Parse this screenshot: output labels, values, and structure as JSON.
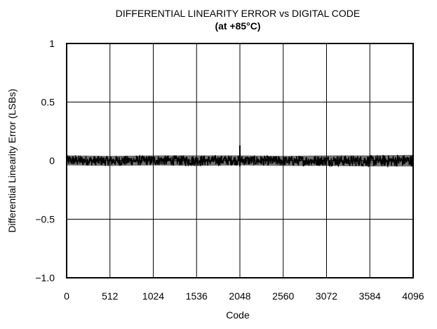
{
  "chart_data": {
    "type": "line",
    "title": "DIFFERENTIAL LINEARITY ERROR vs DIGITAL CODE",
    "subtitle": "(at +85°C)",
    "xlabel": "Code",
    "ylabel": "Differential Linearity Error (LSBs)",
    "xlim": [
      0,
      4096
    ],
    "ylim": [
      -1.0,
      1.0
    ],
    "x_ticks": [
      0,
      512,
      1024,
      1536,
      2048,
      2560,
      3072,
      3584,
      4096
    ],
    "x_tick_labels": [
      "0",
      "512",
      "1024",
      "1536",
      "2048",
      "2560",
      "3072",
      "3584",
      "4096"
    ],
    "y_ticks": [
      -1.0,
      -0.5,
      0,
      0.5,
      1
    ],
    "y_tick_labels": [
      "−1.0",
      "−0.5",
      "0",
      "0.5",
      "1"
    ],
    "grid": true,
    "series": [
      {
        "color": "#000000",
        "band": {
          "x": [
            0,
            512,
            1024,
            1536,
            2048,
            2560,
            3072,
            3584,
            4096
          ],
          "upper": [
            0.045,
            0.04,
            0.045,
            0.045,
            0.045,
            0.04,
            0.045,
            0.045,
            0.05
          ],
          "lower": [
            -0.04,
            -0.045,
            -0.04,
            -0.045,
            -0.04,
            -0.045,
            -0.045,
            -0.05,
            -0.05
          ]
        },
        "spikes": [
          {
            "x": 2048,
            "y": 0.13
          },
          {
            "x": 2048,
            "y": -0.05
          }
        ]
      }
    ]
  }
}
